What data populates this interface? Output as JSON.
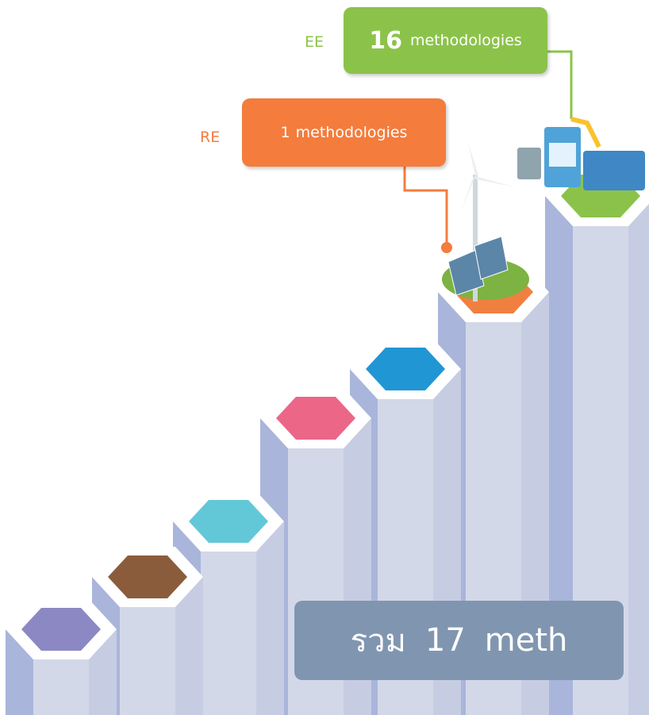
{
  "ee": {
    "label": "EE",
    "count": 16,
    "unit": "methodologies"
  },
  "re": {
    "label": "RE",
    "count": 1,
    "unit": "methodologies"
  },
  "total": {
    "prefix": "รวม",
    "count": 17,
    "unit": "meth"
  }
}
